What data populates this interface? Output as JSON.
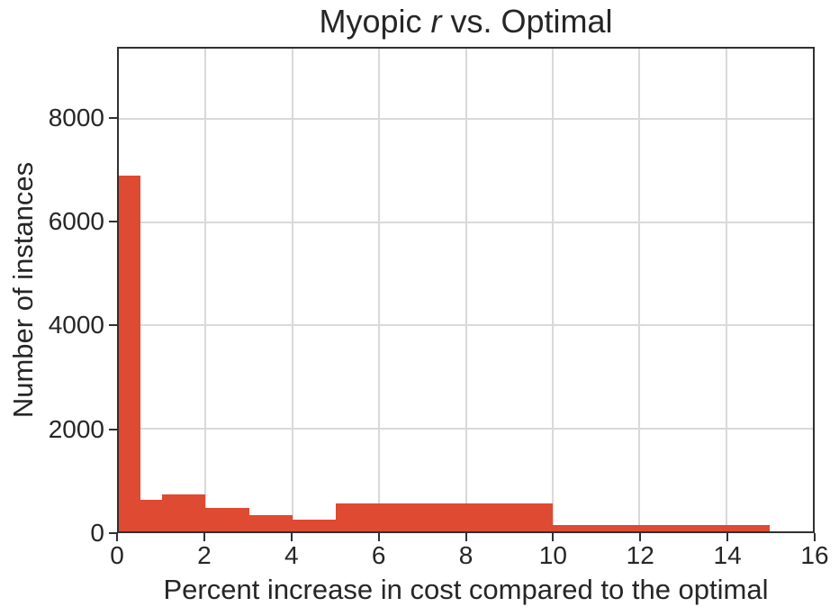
{
  "figure": {
    "background": "#ffffff",
    "text_color": "#262626",
    "axis_color": "#303030",
    "grid_color": "#d9d9d9"
  },
  "title": {
    "prefix": "Myopic ",
    "variable": "r",
    "suffix": " vs. Optimal"
  },
  "chart_data": {
    "type": "bar",
    "subtype": "histogram",
    "title": "Myopic r vs. Optimal",
    "xlabel": "Percent increase in cost compared to the optimal",
    "ylabel": "Number of instances",
    "bar_color": "#de4a32",
    "grid": true,
    "xlim": [
      0,
      16
    ],
    "ylim": [
      0,
      9370
    ],
    "x_ticks": [
      0,
      2,
      4,
      6,
      8,
      10,
      12,
      14,
      16
    ],
    "y_ticks": [
      0,
      2000,
      4000,
      6000,
      8000
    ],
    "bins": [
      {
        "x0": 0,
        "x1": 0.5,
        "count": 6900
      },
      {
        "x0": 0.5,
        "x1": 1,
        "count": 620
      },
      {
        "x0": 1,
        "x1": 2,
        "count": 720
      },
      {
        "x0": 2,
        "x1": 3,
        "count": 450
      },
      {
        "x0": 3,
        "x1": 4,
        "count": 310
      },
      {
        "x0": 4,
        "x1": 5,
        "count": 220
      },
      {
        "x0": 5,
        "x1": 10,
        "count": 540
      },
      {
        "x0": 10,
        "x1": 15,
        "count": 120
      }
    ]
  }
}
